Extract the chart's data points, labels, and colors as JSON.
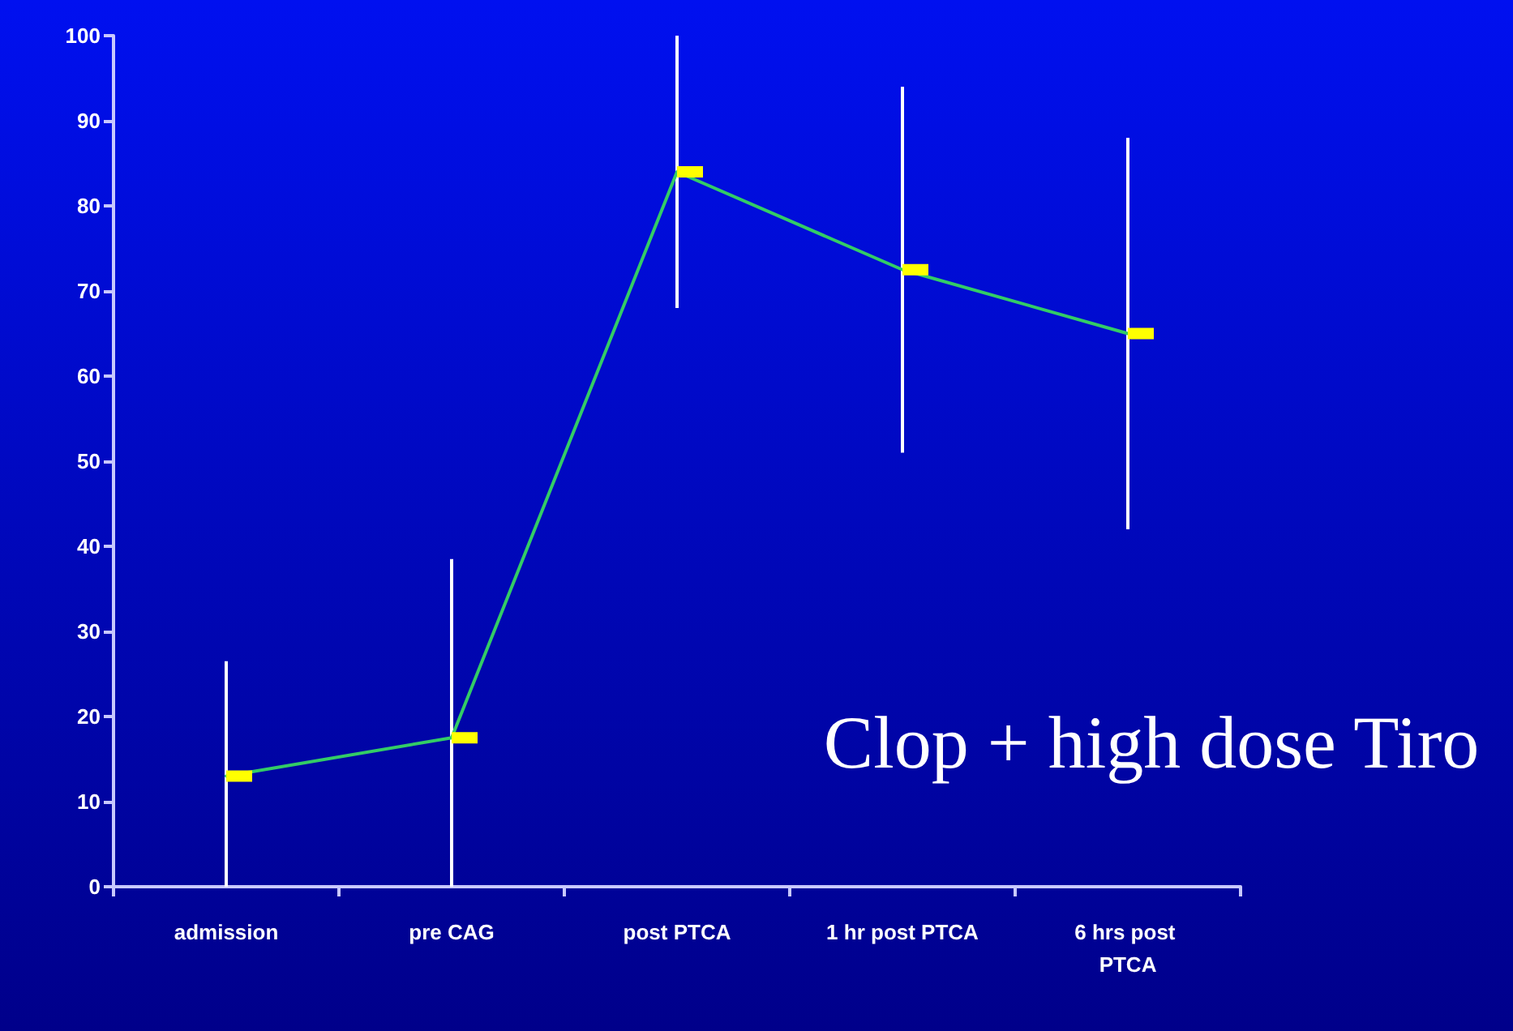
{
  "chart_data": {
    "type": "line",
    "categories": [
      "admission",
      "pre CAG",
      "post PTCA",
      "1 hr post PTCA",
      "6 hrs post PTCA"
    ],
    "series": [
      {
        "color": "#33cc66",
        "values": [
          13,
          17.5,
          84,
          72.5,
          65
        ],
        "errors": [
          [
            0,
            26.5
          ],
          [
            0,
            38.5
          ],
          [
            68,
            100
          ],
          [
            51,
            94
          ],
          [
            42,
            88
          ]
        ]
      }
    ],
    "ylim": [
      0,
      100
    ],
    "yticks": [
      0,
      10,
      20,
      30,
      40,
      50,
      60,
      70,
      80,
      90,
      100
    ],
    "grid": false,
    "legend": false,
    "marker": "square",
    "line_style": "solid",
    "annotations": [
      "Clop + high dose Tiro"
    ]
  }
}
